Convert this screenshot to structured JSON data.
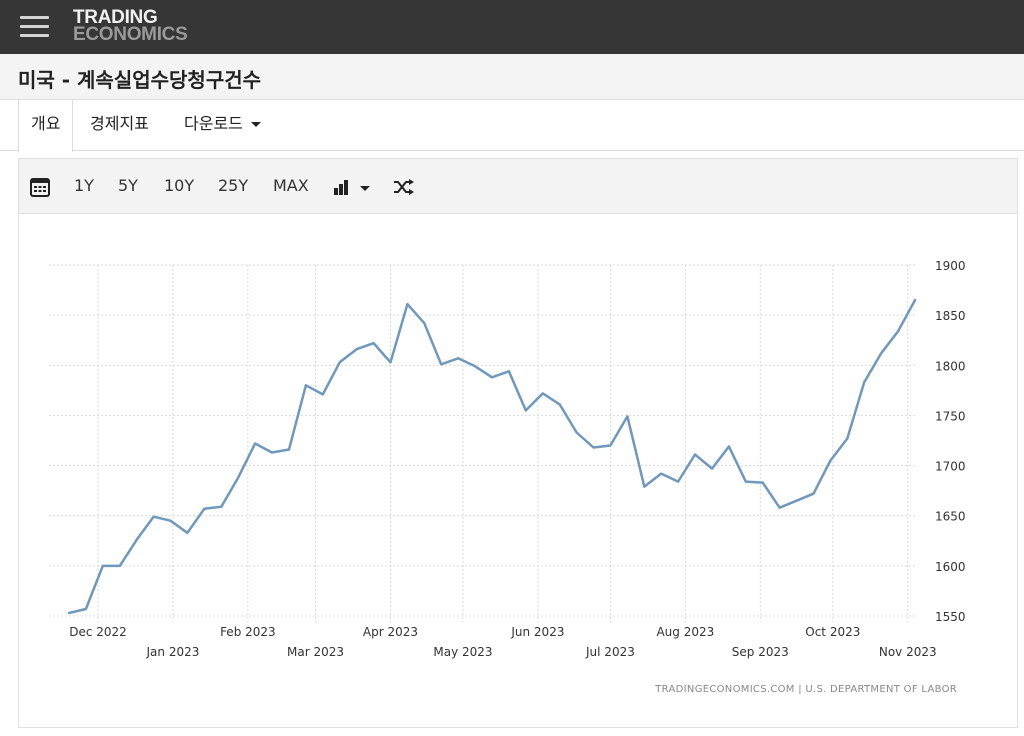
{
  "header": {
    "logo_line1": "TRADING",
    "logo_line2": "ECONOMICS"
  },
  "page": {
    "title": "미국 - 계속실업수당청구건수"
  },
  "tabs": [
    {
      "label": "개요"
    },
    {
      "label": "경제지표"
    },
    {
      "label": "다운로드"
    }
  ],
  "toolbar": {
    "ranges": [
      "1Y",
      "5Y",
      "10Y",
      "25Y",
      "MAX"
    ]
  },
  "colors": {
    "line": "#6f98bd",
    "header_bg": "#363636"
  },
  "chart_data": {
    "type": "line",
    "ylim": [
      1550,
      1900
    ],
    "y_ticks": [
      1900,
      1850,
      1800,
      1750,
      1700,
      1650,
      1600,
      1550
    ],
    "grid": true,
    "y_axis_side": "right",
    "x_range": [
      "2022-11-26",
      "2023-11-04"
    ],
    "x_tick_labels": [
      {
        "label": "Dec 2022",
        "date": "2022-12-01",
        "row": 1
      },
      {
        "label": "Jan 2023",
        "date": "2023-01-01",
        "row": 2
      },
      {
        "label": "Feb 2023",
        "date": "2023-02-01",
        "row": 1
      },
      {
        "label": "Mar 2023",
        "date": "2023-03-01",
        "row": 2
      },
      {
        "label": "Apr 2023",
        "date": "2023-04-01",
        "row": 1
      },
      {
        "label": "May 2023",
        "date": "2023-05-01",
        "row": 2
      },
      {
        "label": "Jun 2023",
        "date": "2023-06-01",
        "row": 1
      },
      {
        "label": "Jul 2023",
        "date": "2023-07-01",
        "row": 2
      },
      {
        "label": "Aug 2023",
        "date": "2023-08-01",
        "row": 1
      },
      {
        "label": "Sep 2023",
        "date": "2023-09-01",
        "row": 2
      },
      {
        "label": "Oct 2023",
        "date": "2023-10-01",
        "row": 1
      },
      {
        "label": "Nov 2023",
        "date": "2023-11-01",
        "row": 2
      }
    ],
    "series": [
      {
        "points": [
          [
            "2022-11-19",
            1553
          ],
          [
            "2022-11-26",
            1557
          ],
          [
            "2022-12-03",
            1600
          ],
          [
            "2022-12-10",
            1600
          ],
          [
            "2022-12-17",
            1626
          ],
          [
            "2022-12-24",
            1649
          ],
          [
            "2022-12-31",
            1645
          ],
          [
            "2023-01-07",
            1633
          ],
          [
            "2023-01-14",
            1657
          ],
          [
            "2023-01-21",
            1659
          ],
          [
            "2023-01-28",
            1688
          ],
          [
            "2023-02-04",
            1722
          ],
          [
            "2023-02-11",
            1713
          ],
          [
            "2023-02-18",
            1716
          ],
          [
            "2023-02-25",
            1780
          ],
          [
            "2023-03-04",
            1771
          ],
          [
            "2023-03-11",
            1803
          ],
          [
            "2023-03-18",
            1816
          ],
          [
            "2023-03-25",
            1822
          ],
          [
            "2023-04-01",
            1803
          ],
          [
            "2023-04-08",
            1861
          ],
          [
            "2023-04-15",
            1842
          ],
          [
            "2023-04-22",
            1801
          ],
          [
            "2023-04-29",
            1807
          ],
          [
            "2023-05-06",
            1799
          ],
          [
            "2023-05-13",
            1788
          ],
          [
            "2023-05-20",
            1794
          ],
          [
            "2023-05-27",
            1755
          ],
          [
            "2023-06-03",
            1772
          ],
          [
            "2023-06-10",
            1761
          ],
          [
            "2023-06-17",
            1733
          ],
          [
            "2023-06-24",
            1718
          ],
          [
            "2023-07-01",
            1720
          ],
          [
            "2023-07-08",
            1749
          ],
          [
            "2023-07-15",
            1679
          ],
          [
            "2023-07-22",
            1692
          ],
          [
            "2023-07-29",
            1684
          ],
          [
            "2023-08-05",
            1711
          ],
          [
            "2023-08-12",
            1697
          ],
          [
            "2023-08-19",
            1719
          ],
          [
            "2023-08-26",
            1684
          ],
          [
            "2023-09-02",
            1683
          ],
          [
            "2023-09-09",
            1658
          ],
          [
            "2023-09-16",
            1665
          ],
          [
            "2023-09-23",
            1672
          ],
          [
            "2023-09-30",
            1705
          ],
          [
            "2023-10-07",
            1727
          ],
          [
            "2023-10-14",
            1783
          ],
          [
            "2023-10-21",
            1812
          ],
          [
            "2023-10-28",
            1834
          ],
          [
            "2023-11-04",
            1865
          ]
        ]
      }
    ],
    "attribution": "TRADINGECONOMICS.COM  |  U.S. DEPARTMENT OF LABOR"
  }
}
